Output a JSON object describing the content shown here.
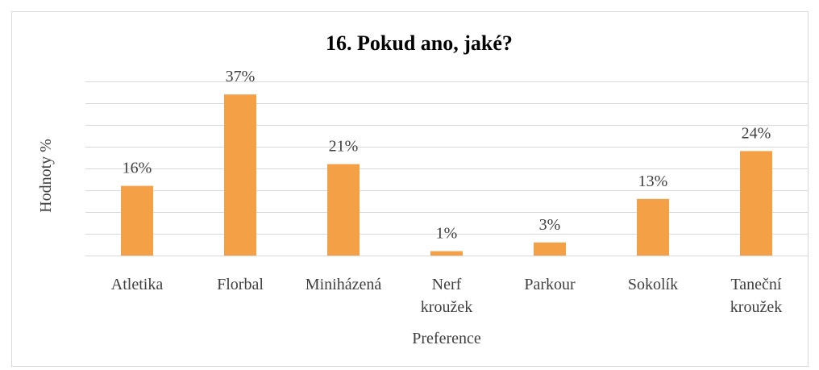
{
  "chart_data": {
    "type": "bar",
    "title": "16. Pokud ano, jaké?",
    "x_label": "Preference",
    "y_label": "Hodnoty %",
    "categories": [
      "Atletika",
      "Florbal",
      "Miniházená",
      "Nerf kroužek",
      "Parkour",
      "Sokolík",
      "Taneční kroužek"
    ],
    "values": [
      16,
      37,
      21,
      1,
      3,
      13,
      24
    ],
    "value_labels": [
      "16%",
      "37%",
      "21%",
      "1%",
      "3%",
      "13%",
      "24%"
    ],
    "color": "#f4a046",
    "ylim": [
      0,
      40
    ],
    "yticks": [
      0,
      5,
      10,
      15,
      20,
      25,
      30,
      35,
      40
    ],
    "grid": true
  }
}
